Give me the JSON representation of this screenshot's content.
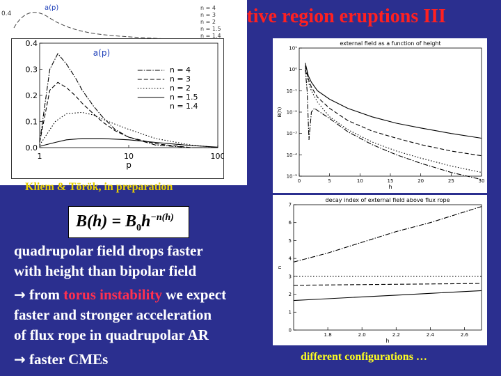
{
  "title": "ctive region eruptions III",
  "citation": "Kliem & Török, in preparation",
  "formula": {
    "lhs": "B(h) = B",
    "sub": "0",
    "base": "h",
    "exponent": "−n(h)"
  },
  "text": {
    "line1": "quadrupolar field drops faster",
    "line2": "with height than bipolar field",
    "line3_arrow": "→",
    "line3_pre": "from ",
    "line3_hl": "torus instability",
    "line3_post": " we expect",
    "line4": "faster and stronger acceleration",
    "line5": "of flux rope in quadrupolar AR",
    "line6_arrow": "→",
    "line6_text": "faster CMEs"
  },
  "caption": "different configurations …",
  "back_panel": {
    "label": "a(p)",
    "yticks": [
      "0.4",
      "0.3",
      "0.2",
      "0.1",
      "0"
    ],
    "legend": [
      "n = 4",
      "n = 3",
      "n = 2",
      "n = 1.5",
      "n = 1.4"
    ]
  },
  "chart_data": [
    {
      "type": "line",
      "title": "",
      "label": "a(p)",
      "xlabel": "p",
      "xscale": "log",
      "xlim": [
        1,
        100
      ],
      "xticks": [
        "1",
        "10",
        "100"
      ],
      "ylim": [
        0,
        0.4
      ],
      "yticks": [
        "0.0",
        "0.1",
        "0.2",
        "0.3",
        "0.4"
      ],
      "legend_position": "right",
      "series": [
        {
          "name": "n = 4",
          "style": "dash-dot",
          "x": [
            1,
            1.3,
            1.6,
            2,
            2.5,
            3,
            4,
            5,
            7,
            10,
            20,
            50,
            100
          ],
          "y": [
            0.02,
            0.3,
            0.36,
            0.32,
            0.27,
            0.22,
            0.16,
            0.12,
            0.07,
            0.04,
            0.01,
            0.0,
            0.0
          ]
        },
        {
          "name": "n = 3",
          "style": "dashed",
          "x": [
            1,
            1.3,
            1.6,
            2,
            2.5,
            3,
            4,
            5,
            7,
            10,
            20,
            50,
            100
          ],
          "y": [
            0.02,
            0.22,
            0.25,
            0.23,
            0.2,
            0.17,
            0.13,
            0.1,
            0.065,
            0.04,
            0.015,
            0.0,
            0.0
          ]
        },
        {
          "name": "n = 2",
          "style": "dotted",
          "x": [
            1,
            1.5,
            2,
            3,
            4,
            5,
            7,
            10,
            20,
            50,
            100
          ],
          "y": [
            0.01,
            0.1,
            0.13,
            0.135,
            0.125,
            0.11,
            0.09,
            0.07,
            0.035,
            0.01,
            0.0
          ]
        },
        {
          "name": "n = 1.5",
          "style": "solid",
          "x": [
            1,
            1.5,
            2,
            3,
            5,
            10,
            20,
            50,
            100
          ],
          "y": [
            0.005,
            0.02,
            0.03,
            0.035,
            0.035,
            0.03,
            0.02,
            0.008,
            0.002
          ]
        },
        {
          "name": "n = 1.4",
          "style": "legend-only",
          "x": [],
          "y": []
        }
      ],
      "legend": [
        "n = 4",
        "n = 3",
        "n = 2",
        "n = 1.5",
        "n = 1.4"
      ]
    },
    {
      "type": "line",
      "title": "external field as a function of height",
      "xlabel": "h",
      "ylabel": "B(h)",
      "yscale": "log",
      "xlim": [
        0,
        30
      ],
      "xticks": [
        "0",
        "5",
        "10",
        "15",
        "20",
        "25",
        "30"
      ],
      "ylim": [
        1e-05,
        10
      ],
      "yticks": [
        "10¹",
        "10⁰",
        "10⁻¹",
        "10⁻²",
        "10⁻³",
        "10⁻⁴",
        "10⁻⁵"
      ],
      "series": [
        {
          "name": "",
          "style": "solid",
          "x": [
            1,
            1.5,
            2,
            3,
            5,
            8,
            12,
            16,
            20,
            25,
            30
          ],
          "y": [
            2,
            0.5,
            0.25,
            0.1,
            0.04,
            0.015,
            0.006,
            0.003,
            0.0018,
            0.001,
            0.0006
          ]
        },
        {
          "name": "",
          "style": "dashed",
          "x": [
            1,
            1.5,
            2,
            3,
            5,
            8,
            12,
            16,
            20,
            25,
            30
          ],
          "y": [
            1.5,
            0.35,
            0.15,
            0.05,
            0.015,
            0.004,
            0.0013,
            0.0006,
            0.0003,
            0.00015,
            9e-05
          ]
        },
        {
          "name": "",
          "style": "dotted",
          "x": [
            1,
            1.5,
            2,
            3,
            5,
            8,
            12,
            16,
            20,
            25,
            30
          ],
          "y": [
            1.2,
            0.25,
            0.1,
            0.03,
            0.006,
            0.0015,
            0.0004,
            0.00015,
            7e-05,
            3e-05,
            1.5e-05
          ]
        },
        {
          "name": "",
          "style": "dash-dot",
          "x": [
            1,
            1.3,
            1.6,
            2,
            2.5,
            3,
            5,
            8,
            12,
            16,
            20,
            25,
            30
          ],
          "y": [
            1,
            0.1,
            0.0005,
            0.01,
            0.015,
            0.012,
            0.005,
            0.0012,
            0.0003,
            0.0001,
            4e-05,
            1.5e-05,
            7e-06
          ]
        }
      ]
    },
    {
      "type": "line",
      "title": "decay index of external field above flux rope",
      "xlabel": "h",
      "ylabel": "n",
      "xlim": [
        1.6,
        2.7
      ],
      "xticks": [
        "1.8",
        "2.0",
        "2.2",
        "2.4",
        "2.6"
      ],
      "ylim": [
        0,
        7
      ],
      "yticks": [
        "0",
        "1",
        "2",
        "3",
        "4",
        "5",
        "6",
        "7"
      ],
      "series": [
        {
          "name": "",
          "style": "dash-dot",
          "x": [
            1.6,
            1.8,
            2.0,
            2.2,
            2.4,
            2.6,
            2.7
          ],
          "y": [
            3.8,
            4.3,
            4.9,
            5.5,
            6.0,
            6.6,
            6.9
          ]
        },
        {
          "name": "",
          "style": "dotted",
          "x": [
            1.6,
            2.7
          ],
          "y": [
            3.0,
            3.0
          ]
        },
        {
          "name": "",
          "style": "dashed",
          "x": [
            1.6,
            2.7
          ],
          "y": [
            2.5,
            2.6
          ]
        },
        {
          "name": "",
          "style": "solid",
          "x": [
            1.6,
            1.8,
            2.0,
            2.2,
            2.4,
            2.6,
            2.7
          ],
          "y": [
            1.65,
            1.75,
            1.85,
            1.95,
            2.05,
            2.15,
            2.2
          ]
        }
      ]
    }
  ]
}
